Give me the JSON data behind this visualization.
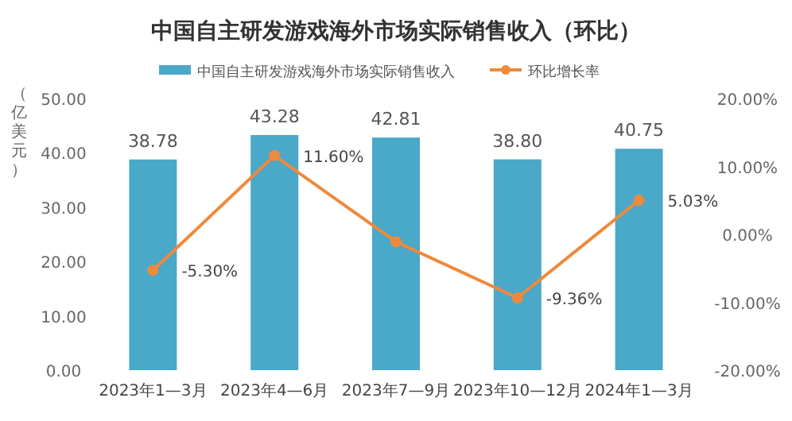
{
  "chart_data": {
    "type": "bar",
    "title": "中国自主研发游戏海外市场实际销售收入（环比）",
    "ylabel": "（亿美元）",
    "legend": "top",
    "marker": "circle",
    "categories": [
      "2023年1—3月",
      "2023年4—6月",
      "2023年7—9月",
      "2023年10—12月",
      "2024年1—3月"
    ],
    "series": [
      {
        "name": "中国自主研发游戏海外市场实际销售收入",
        "color": "#4aa8c8",
        "values": [
          38.78,
          43.28,
          42.81,
          38.8,
          40.75
        ],
        "value_labels": [
          "38.78",
          "43.28",
          "42.81",
          "38.80",
          "40.75"
        ]
      },
      {
        "name": "环比增长率",
        "type": "line",
        "axis": "y2",
        "color": "#ee8a3c",
        "values": [
          -5.3,
          11.6,
          -1.1,
          -9.36,
          5.03
        ],
        "value_labels": [
          "-5.30%",
          "11.60%",
          null,
          "-9.36%",
          "5.03%"
        ]
      }
    ],
    "ylim": [
      0,
      50
    ],
    "yticks": [
      {
        "value": 0,
        "label": "0.00"
      },
      {
        "value": 10,
        "label": "10.00"
      },
      {
        "value": 20,
        "label": "20.00"
      },
      {
        "value": 30,
        "label": "30.00"
      },
      {
        "value": 40,
        "label": "40.00"
      },
      {
        "value": 50,
        "label": "50.00"
      }
    ],
    "y2lim": [
      -20,
      20
    ],
    "y2ticks": [
      {
        "value": -20,
        "label": "-20.00%"
      },
      {
        "value": -10,
        "label": "-10.00%"
      },
      {
        "value": 0,
        "label": "0.00%"
      },
      {
        "value": 10,
        "label": "10.00%"
      },
      {
        "value": 20,
        "label": "20.00%"
      }
    ]
  }
}
